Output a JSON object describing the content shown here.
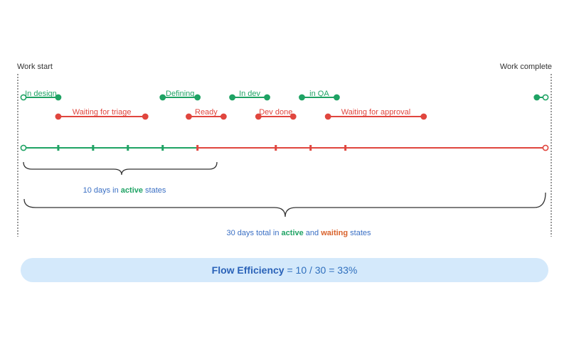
{
  "markers": {
    "start_label": "Work start",
    "end_label": "Work complete"
  },
  "colors": {
    "active": "#1fa364",
    "waiting": "#e0463e",
    "text_blue": "#3a6fc4",
    "marker_text": "#333333",
    "pill_bg": "#d4e9fb"
  },
  "states": {
    "active": [
      {
        "label": "In design",
        "start_day": 0,
        "end_day": 2,
        "open_start": true,
        "open_end": false
      },
      {
        "label": "Defining",
        "start_day": 8,
        "end_day": 10,
        "open_start": false,
        "open_end": false
      },
      {
        "label": "In dev",
        "start_day": 12,
        "end_day": 14,
        "open_start": false,
        "open_end": false
      },
      {
        "label": "in QA",
        "start_day": 16,
        "end_day": 18,
        "open_start": false,
        "open_end": false
      },
      {
        "label": "",
        "start_day": 29.5,
        "end_day": 30,
        "open_start": false,
        "open_end": true
      }
    ],
    "waiting": [
      {
        "label": "Waiting for triage",
        "start_day": 2,
        "end_day": 7
      },
      {
        "label": "Ready",
        "start_day": 9.5,
        "end_day": 11.5
      },
      {
        "label": "Dev done",
        "start_day": 13.5,
        "end_day": 15.5
      },
      {
        "label": "Waiting for approval",
        "start_day": 17.5,
        "end_day": 23
      }
    ]
  },
  "timeline": {
    "total_days": 30,
    "active_days": 10,
    "active_ticks_days": [
      2,
      4,
      6,
      8
    ],
    "waiting_ticks_days": [
      14.5,
      16.5,
      18.5
    ]
  },
  "braces": {
    "active": {
      "pre": "10 days in ",
      "em": "active",
      "post": " states"
    },
    "total": {
      "pre": "30 days total in ",
      "em1": "active",
      "mid": " and ",
      "em2": "waiting",
      "post": " states"
    }
  },
  "efficiency": {
    "term": "Flow Efficiency",
    "formula": " = 10 / 30 = 33%"
  }
}
